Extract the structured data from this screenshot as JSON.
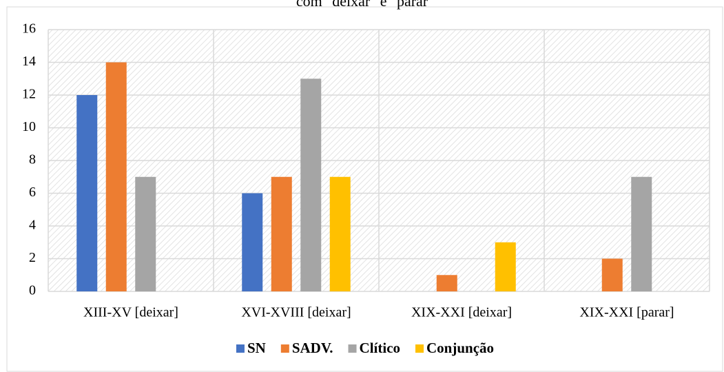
{
  "chart_data": {
    "type": "bar",
    "title": "com \"deixar\" e \"parar\"",
    "categories": [
      "XIII-XV [deixar]",
      "XVI-XVIII  [deixar]",
      "XIX-XXI  [deixar]",
      "XIX-XXI [parar]"
    ],
    "series": [
      {
        "name": "SN",
        "color": "#4472c4",
        "values": [
          12,
          6,
          0,
          0
        ]
      },
      {
        "name": "SADV.",
        "color": "#ed7d31",
        "values": [
          14,
          7,
          1,
          2
        ]
      },
      {
        "name": "Clítico",
        "color": "#a5a5a5",
        "values": [
          7,
          13,
          0,
          7
        ]
      },
      {
        "name": "Conjunção",
        "color": "#ffc000",
        "values": [
          0,
          7,
          3,
          0
        ]
      }
    ],
    "ylim": [
      0,
      16
    ],
    "yticks": [
      0,
      2,
      4,
      6,
      8,
      10,
      12,
      14,
      16
    ],
    "grid": true,
    "legend": "bottom"
  }
}
